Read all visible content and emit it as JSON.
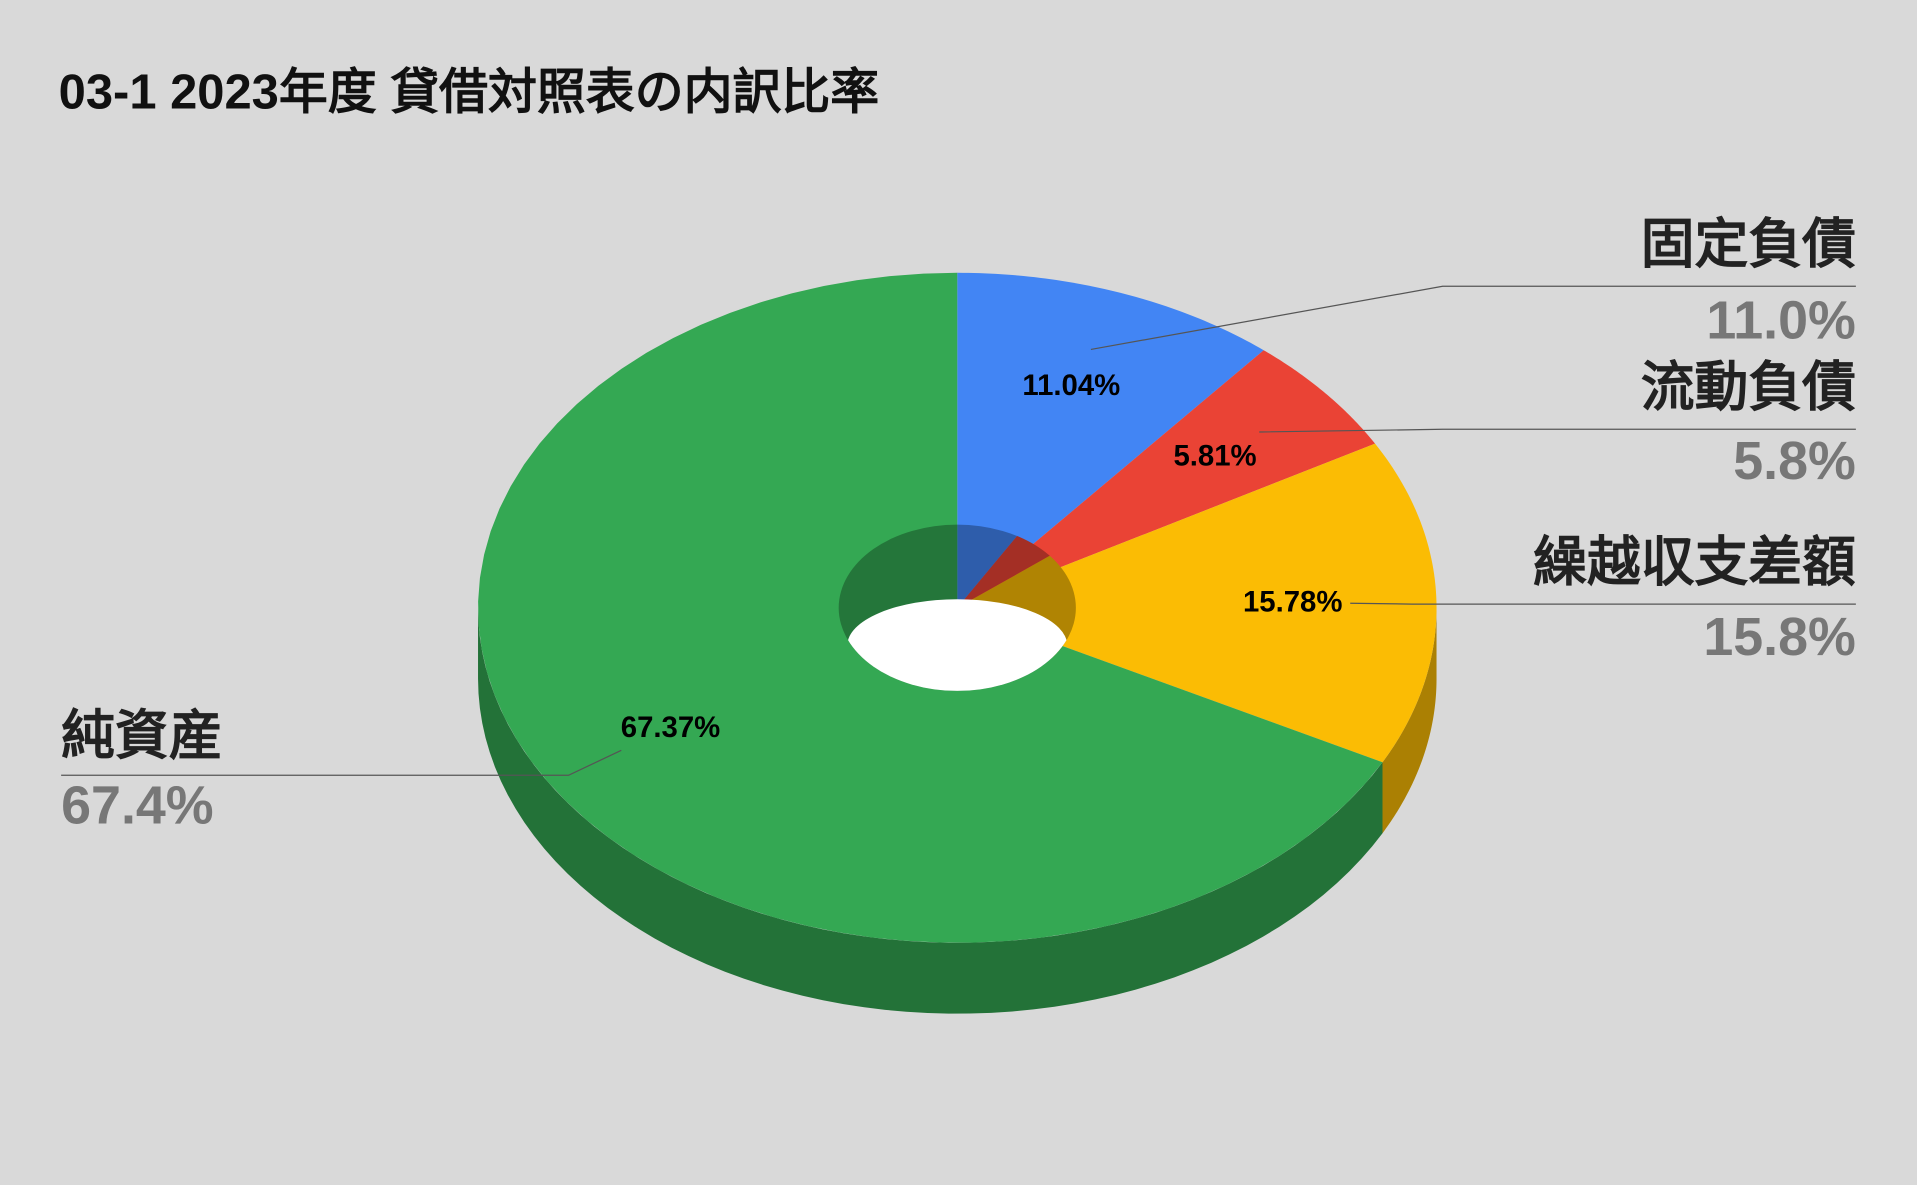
{
  "chart_data": {
    "type": "donut3d",
    "title": "03-1 2023年度 貸借対照表の内訳比率",
    "categories": [
      "固定負債",
      "流動負債",
      "繰越収支差額",
      "純資産"
    ],
    "values": [
      11.04,
      5.81,
      15.78,
      67.37
    ],
    "value_labels": [
      "11.04%",
      "5.81%",
      "15.78%",
      "67.37%"
    ],
    "legend_value_labels": [
      "11.0%",
      "5.8%",
      "15.8%",
      "67.4%"
    ],
    "colors": [
      "#4285f4",
      "#ea4335",
      "#fbbc04",
      "#34a853"
    ]
  }
}
